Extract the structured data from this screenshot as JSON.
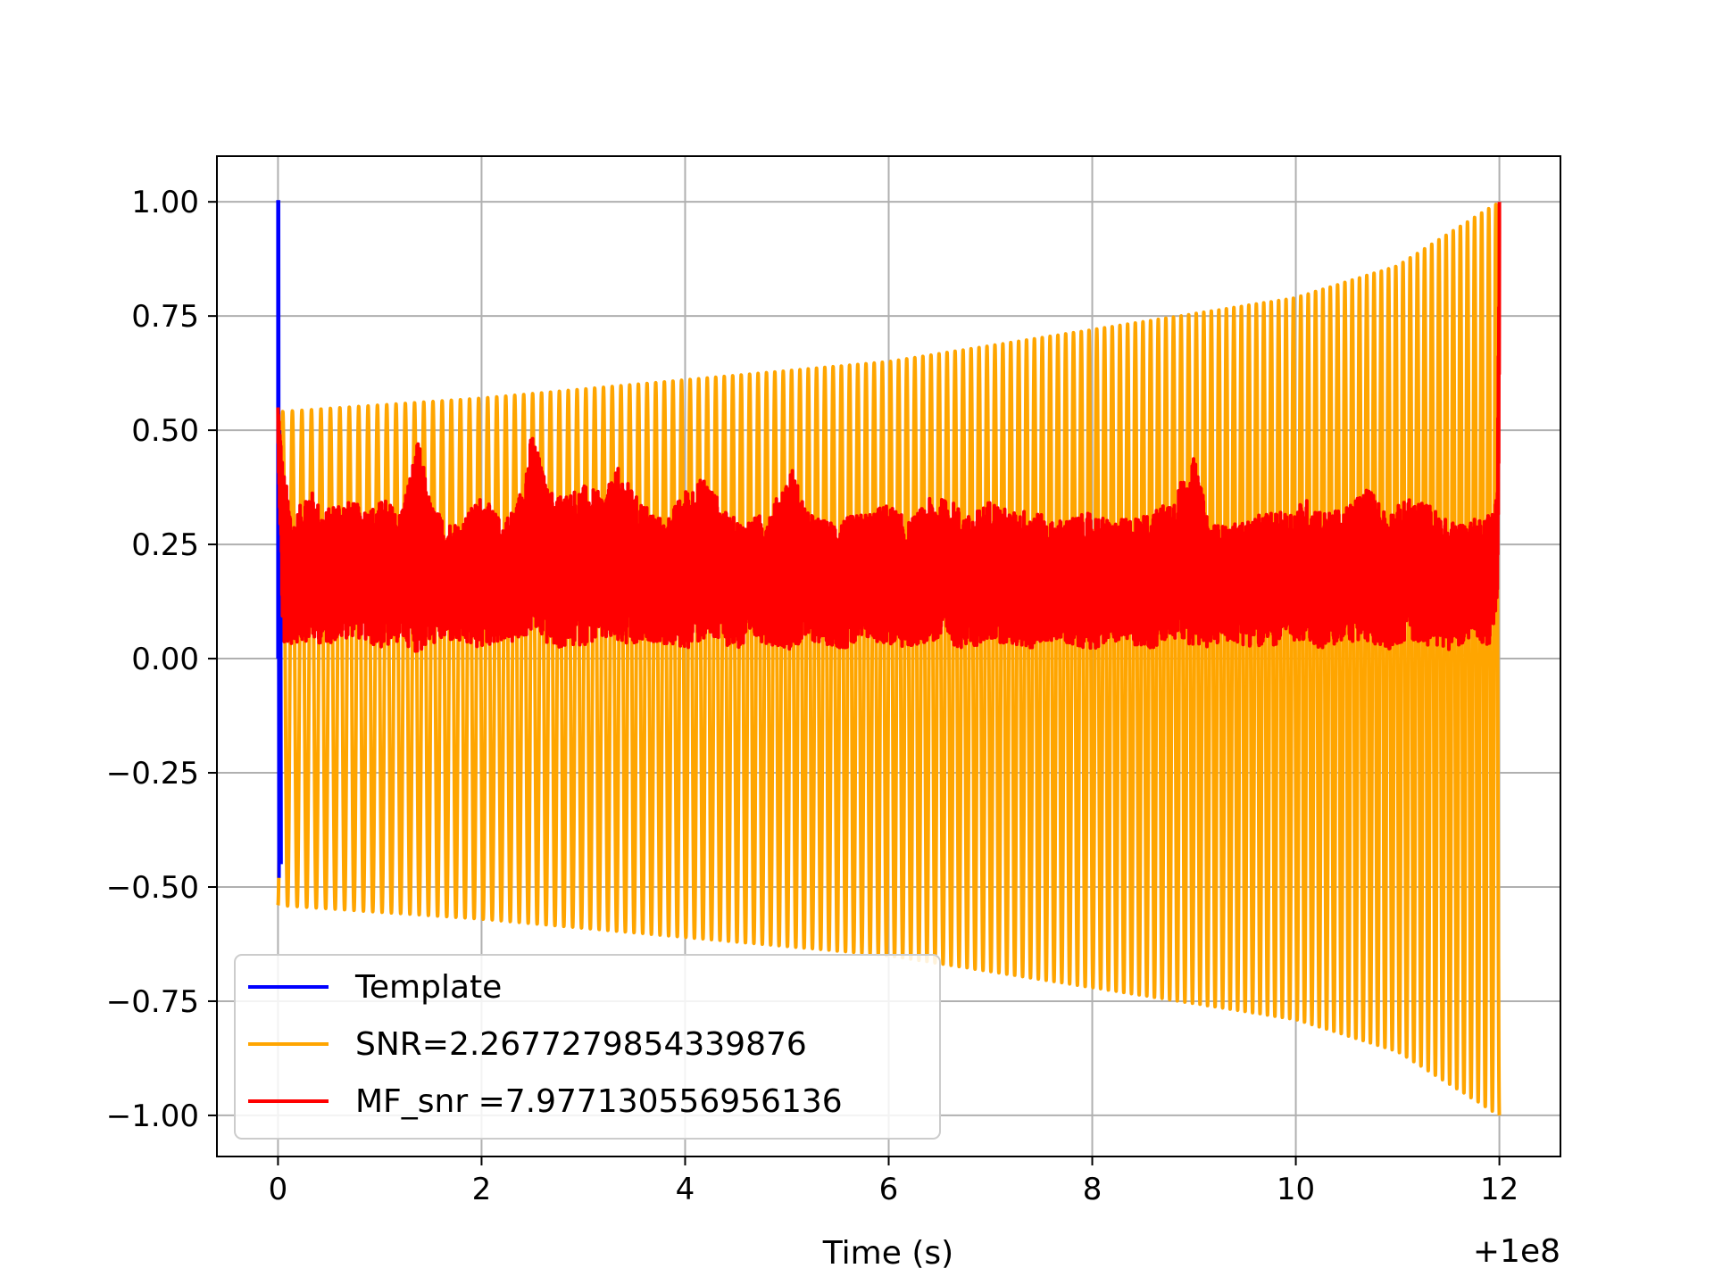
{
  "chart_data": {
    "type": "line",
    "title": "",
    "xlabel": "Time (s)",
    "ylabel": "",
    "x_offset_label": "+1e8",
    "xlim": [
      -0.6,
      12.6
    ],
    "ylim": [
      -1.09,
      1.1
    ],
    "x_ticks": [
      0,
      2,
      4,
      6,
      8,
      10,
      12
    ],
    "x_tick_labels": [
      "0",
      "2",
      "4",
      "6",
      "8",
      "10",
      "12"
    ],
    "y_ticks": [
      1.0,
      0.75,
      0.5,
      0.25,
      0.0,
      -0.25,
      -0.5,
      -0.75,
      -1.0
    ],
    "y_tick_labels": [
      "1.00",
      "0.75",
      "0.50",
      "0.25",
      "0.00",
      "−0.25",
      "−0.50",
      "−0.75",
      "−1.00"
    ],
    "grid": true,
    "legend_position": "bottom-left",
    "series": [
      {
        "name": "Template",
        "color": "#0000ff",
        "x": [
          0.0,
          0.0,
          0.005,
          0.01,
          0.015,
          0.02,
          0.025,
          0.03
        ],
        "values": [
          0.0,
          1.0,
          1.0,
          -0.48,
          0.5,
          -0.3,
          0.4,
          -0.45
        ]
      },
      {
        "name": "SNR=2.2677279854339876",
        "color": "#ffa500",
        "kind": "chirp",
        "t_start": 0.0,
        "t_end": 12.0,
        "envelope_t": [
          0.0,
          2.0,
          4.0,
          6.0,
          8.0,
          10.0,
          11.0,
          12.0
        ],
        "envelope_amp": [
          0.54,
          0.57,
          0.61,
          0.65,
          0.72,
          0.79,
          0.86,
          1.0
        ],
        "cycles": 150
      },
      {
        "name": "MF_snr =7.977130556956136",
        "color": "#ff0000",
        "x": [
          0.0,
          0.05,
          0.15,
          0.3,
          0.45,
          0.6,
          0.75,
          0.9,
          1.05,
          1.2,
          1.38,
          1.5,
          1.65,
          1.8,
          2.0,
          2.2,
          2.35,
          2.5,
          2.65,
          2.8,
          3.0,
          3.2,
          3.35,
          3.5,
          3.65,
          3.8,
          4.0,
          4.2,
          4.4,
          4.55,
          4.7,
          4.85,
          5.05,
          5.2,
          5.4,
          5.6,
          5.8,
          6.0,
          6.2,
          6.4,
          6.6,
          6.8,
          7.0,
          7.2,
          7.4,
          7.6,
          7.8,
          8.0,
          8.2,
          8.4,
          8.6,
          8.8,
          9.0,
          9.15,
          9.3,
          9.5,
          9.7,
          9.9,
          10.1,
          10.3,
          10.5,
          10.7,
          10.9,
          11.1,
          11.3,
          11.5,
          11.7,
          11.9,
          11.98,
          12.0
        ],
        "values": [
          0.56,
          0.42,
          0.3,
          0.38,
          0.32,
          0.35,
          0.34,
          0.33,
          0.35,
          0.32,
          0.48,
          0.34,
          0.3,
          0.3,
          0.36,
          0.3,
          0.34,
          0.5,
          0.37,
          0.36,
          0.38,
          0.36,
          0.42,
          0.36,
          0.33,
          0.3,
          0.37,
          0.4,
          0.32,
          0.3,
          0.31,
          0.33,
          0.42,
          0.32,
          0.3,
          0.31,
          0.32,
          0.34,
          0.3,
          0.35,
          0.35,
          0.31,
          0.35,
          0.32,
          0.33,
          0.3,
          0.31,
          0.32,
          0.3,
          0.31,
          0.32,
          0.36,
          0.44,
          0.3,
          0.29,
          0.3,
          0.32,
          0.32,
          0.35,
          0.32,
          0.33,
          0.38,
          0.32,
          0.35,
          0.34,
          0.3,
          0.3,
          0.32,
          0.36,
          1.0
        ],
        "floor_values": [
          0.47,
          0.02,
          0.03,
          0.04,
          0.03,
          0.04,
          0.05,
          0.03,
          0.02,
          0.04,
          0.01,
          0.03,
          0.04,
          0.03,
          0.02,
          0.04,
          0.03,
          0.06,
          0.03,
          0.02,
          0.03,
          0.04,
          0.03,
          0.02,
          0.04,
          0.03,
          0.02,
          0.04,
          0.03,
          0.02,
          0.04,
          0.03,
          0.02,
          0.04,
          0.03,
          0.02,
          0.04,
          0.03,
          0.02,
          0.04,
          0.03,
          0.02,
          0.04,
          0.03,
          0.02,
          0.04,
          0.03,
          0.02,
          0.04,
          0.03,
          0.02,
          0.04,
          0.03,
          0.02,
          0.04,
          0.03,
          0.02,
          0.04,
          0.03,
          0.02,
          0.04,
          0.03,
          0.02,
          0.04,
          0.03,
          0.02,
          0.04,
          0.03,
          0.11,
          0.58
        ]
      }
    ]
  }
}
